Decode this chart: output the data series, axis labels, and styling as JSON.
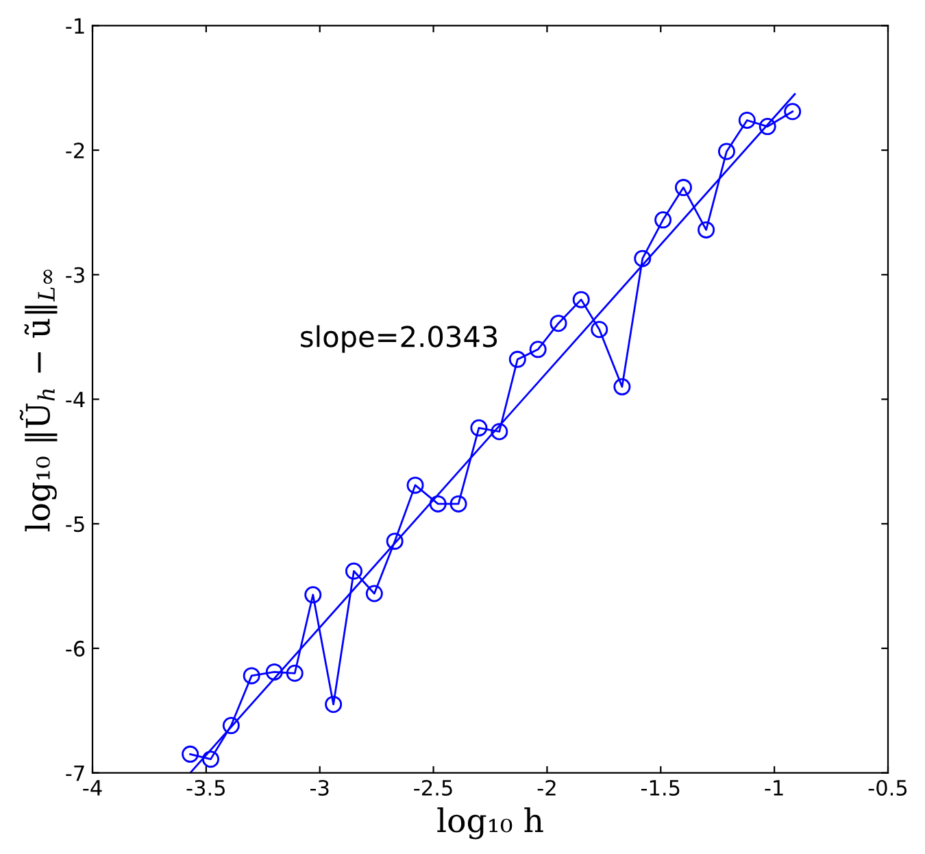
{
  "chart_data": {
    "type": "line",
    "xlabel": "log₁₀ h",
    "ylabel": "log₁₀ ‖Ũ$_{h}$ − ũ‖$_{L∞}$",
    "annotations": [
      "slope=2.0343"
    ],
    "xlim": [
      -4,
      -0.5
    ],
    "ylim": [
      -7,
      -1
    ],
    "xticks": [
      -4,
      -3.5,
      -3,
      -2.5,
      -2,
      -1.5,
      -1,
      -0.5
    ],
    "yticks": [
      -7,
      -6,
      -5,
      -4,
      -3,
      -2,
      -1
    ],
    "grid": false,
    "series": [
      {
        "color": "#0000ff",
        "marker": "circle",
        "line_style": "solid",
        "x": [
          -3.57,
          -3.48,
          -3.39,
          -3.3,
          -3.2,
          -3.11,
          -3.03,
          -2.94,
          -2.85,
          -2.76,
          -2.67,
          -2.58,
          -2.48,
          -2.39,
          -2.3,
          -2.21,
          -2.13,
          -2.04,
          -1.95,
          -1.85,
          -1.77,
          -1.67,
          -1.58,
          -1.49,
          -1.4,
          -1.3,
          -1.21,
          -1.12,
          -1.03,
          -0.92
        ],
        "values": [
          -6.85,
          -6.89,
          -6.62,
          -6.22,
          -6.19,
          -6.2,
          -5.57,
          -6.45,
          -5.38,
          -5.56,
          -5.14,
          -4.69,
          -4.84,
          -4.84,
          -4.23,
          -4.26,
          -3.68,
          -3.6,
          -3.39,
          -3.2,
          -3.44,
          -3.9,
          -2.87,
          -2.56,
          -2.3,
          -2.64,
          -2.01,
          -1.76,
          -1.81,
          -1.69
        ]
      },
      {
        "color": "#0000ff",
        "marker": "none",
        "line_style": "solid",
        "x": [
          -3.57,
          -0.91
        ],
        "values": [
          -7.0,
          -1.55
        ]
      }
    ]
  }
}
